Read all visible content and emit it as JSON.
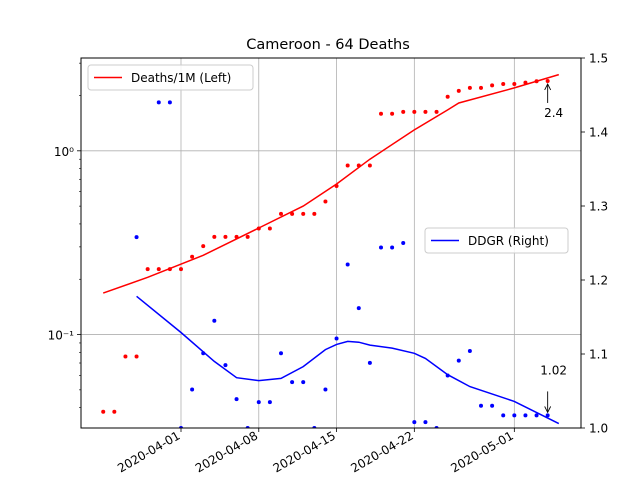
{
  "chart_data": {
    "type": "scatter",
    "title": "Cameroon - 64 Deaths",
    "x_ticks": [
      "2020-04-01",
      "2020-04-08",
      "2020-04-15",
      "2020-04-22",
      "2020-05-01"
    ],
    "x_range": [
      "2020-03-23",
      "2020-05-07"
    ],
    "left_axis": {
      "scale": "log",
      "ylim": [
        0.031,
        3.2
      ],
      "major_ticks": [
        {
          "value": 0.1,
          "label": "10⁻¹"
        },
        {
          "value": 1,
          "label": "10⁰"
        }
      ]
    },
    "right_axis": {
      "scale": "linear",
      "ylim": [
        1.0,
        1.5
      ],
      "ticks": [
        "1.0",
        "1.1",
        "1.2",
        "1.3",
        "1.4",
        "1.5"
      ]
    },
    "grid": true,
    "series": [
      {
        "name": "Deaths/1M (Left)",
        "axis": "left",
        "color": "#ff0000",
        "points": [
          [
            "2020-03-25",
            0.038
          ],
          [
            "2020-03-26",
            0.038
          ],
          [
            "2020-03-27",
            0.076
          ],
          [
            "2020-03-28",
            0.076
          ],
          [
            "2020-03-29",
            0.227
          ],
          [
            "2020-03-30",
            0.227
          ],
          [
            "2020-03-31",
            0.227
          ],
          [
            "2020-04-01",
            0.227
          ],
          [
            "2020-04-02",
            0.265
          ],
          [
            "2020-04-03",
            0.303
          ],
          [
            "2020-04-04",
            0.34
          ],
          [
            "2020-04-05",
            0.34
          ],
          [
            "2020-04-06",
            0.34
          ],
          [
            "2020-04-07",
            0.34
          ],
          [
            "2020-04-08",
            0.378
          ],
          [
            "2020-04-09",
            0.378
          ],
          [
            "2020-04-10",
            0.454
          ],
          [
            "2020-04-11",
            0.454
          ],
          [
            "2020-04-12",
            0.454
          ],
          [
            "2020-04-13",
            0.454
          ],
          [
            "2020-04-14",
            0.53
          ],
          [
            "2020-04-15",
            0.643
          ],
          [
            "2020-04-16",
            0.832
          ],
          [
            "2020-04-17",
            0.832
          ],
          [
            "2020-04-18",
            0.832
          ],
          [
            "2020-04-19",
            1.59
          ],
          [
            "2020-04-20",
            1.59
          ],
          [
            "2020-04-21",
            1.63
          ],
          [
            "2020-04-22",
            1.63
          ],
          [
            "2020-04-23",
            1.63
          ],
          [
            "2020-04-24",
            1.63
          ],
          [
            "2020-04-25",
            1.97
          ],
          [
            "2020-04-26",
            2.12
          ],
          [
            "2020-04-27",
            2.2
          ],
          [
            "2020-04-28",
            2.2
          ],
          [
            "2020-04-29",
            2.27
          ],
          [
            "2020-04-30",
            2.31
          ],
          [
            "2020-05-01",
            2.31
          ],
          [
            "2020-05-02",
            2.35
          ],
          [
            "2020-05-03",
            2.39
          ],
          [
            "2020-05-04",
            2.4
          ]
        ],
        "trend": [
          [
            "2020-03-25",
            0.168
          ],
          [
            "2020-03-29",
            0.205
          ],
          [
            "2020-04-03",
            0.27
          ],
          [
            "2020-04-08",
            0.38
          ],
          [
            "2020-04-12",
            0.5
          ],
          [
            "2020-04-15",
            0.66
          ],
          [
            "2020-04-18",
            0.9
          ],
          [
            "2020-04-22",
            1.3
          ],
          [
            "2020-04-25",
            1.67
          ],
          [
            "2020-04-26",
            1.82
          ],
          [
            "2020-05-01",
            2.2
          ],
          [
            "2020-05-05",
            2.6
          ]
        ]
      },
      {
        "name": "DDGR (Right)",
        "axis": "right",
        "color": "#0000ff",
        "points": [
          [
            "2020-03-28",
            1.258
          ],
          [
            "2020-03-30",
            1.44
          ],
          [
            "2020-03-31",
            1.44
          ],
          [
            "2020-04-01",
            1.0
          ],
          [
            "2020-04-02",
            1.052
          ],
          [
            "2020-04-03",
            1.101
          ],
          [
            "2020-04-04",
            1.145
          ],
          [
            "2020-04-05",
            1.085
          ],
          [
            "2020-04-06",
            1.039
          ],
          [
            "2020-04-07",
            1.0
          ],
          [
            "2020-04-08",
            1.035
          ],
          [
            "2020-04-09",
            1.035
          ],
          [
            "2020-04-10",
            1.101
          ],
          [
            "2020-04-11",
            1.062
          ],
          [
            "2020-04-12",
            1.062
          ],
          [
            "2020-04-13",
            1.0
          ],
          [
            "2020-04-14",
            1.052
          ],
          [
            "2020-04-15",
            1.121
          ],
          [
            "2020-04-16",
            1.221
          ],
          [
            "2020-04-17",
            1.162
          ],
          [
            "2020-04-18",
            1.088
          ],
          [
            "2020-04-19",
            1.244
          ],
          [
            "2020-04-20",
            1.244
          ],
          [
            "2020-04-21",
            1.25
          ],
          [
            "2020-04-22",
            1.008
          ],
          [
            "2020-04-23",
            1.008
          ],
          [
            "2020-04-24",
            1.0
          ],
          [
            "2020-04-25",
            1.071
          ],
          [
            "2020-04-26",
            1.091
          ],
          [
            "2020-04-27",
            1.104
          ],
          [
            "2020-04-28",
            1.03
          ],
          [
            "2020-04-29",
            1.03
          ],
          [
            "2020-04-30",
            1.017
          ],
          [
            "2020-05-01",
            1.017
          ],
          [
            "2020-05-02",
            1.017
          ],
          [
            "2020-05-03",
            1.017
          ],
          [
            "2020-05-04",
            1.017
          ]
        ],
        "trend": [
          [
            "2020-03-28",
            1.178
          ],
          [
            "2020-04-01",
            1.129
          ],
          [
            "2020-04-04",
            1.09
          ],
          [
            "2020-04-06",
            1.068
          ],
          [
            "2020-04-08",
            1.064
          ],
          [
            "2020-04-10",
            1.067
          ],
          [
            "2020-04-12",
            1.083
          ],
          [
            "2020-04-14",
            1.106
          ],
          [
            "2020-04-15",
            1.113
          ],
          [
            "2020-04-16",
            1.117
          ],
          [
            "2020-04-17",
            1.116
          ],
          [
            "2020-04-18",
            1.112
          ],
          [
            "2020-04-20",
            1.108
          ],
          [
            "2020-04-22",
            1.101
          ],
          [
            "2020-04-23",
            1.094
          ],
          [
            "2020-04-25",
            1.072
          ],
          [
            "2020-04-27",
            1.056
          ],
          [
            "2020-05-01",
            1.036
          ],
          [
            "2020-05-05",
            1.006
          ]
        ]
      }
    ],
    "legends": [
      {
        "label": "Deaths/1M (Left)",
        "placement": "top-left"
      },
      {
        "label": "DDGR (Right)",
        "placement": "center-right"
      }
    ],
    "annotations": [
      {
        "text": "2.4",
        "x": "2020-05-04",
        "y": 2.4,
        "axis": "left"
      },
      {
        "text": "1.02",
        "x": "2020-05-04",
        "y": 1.017,
        "axis": "right"
      }
    ]
  }
}
